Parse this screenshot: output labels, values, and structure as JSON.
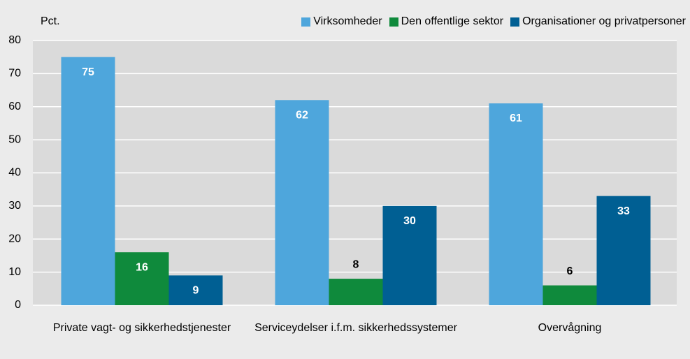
{
  "chart_data": {
    "type": "bar",
    "y_label": "Pct.",
    "categories": [
      "Private vagt- og sikkerhedstjenester",
      "Serviceydelser i.f.m. sikkerhedssystemer",
      "Overvågning"
    ],
    "series": [
      {
        "name": "Virksomheder",
        "color": "#4ea6dc",
        "values": [
          75,
          62,
          61
        ]
      },
      {
        "name": "Den offentlige sektor",
        "color": "#0f8a3c",
        "values": [
          16,
          8,
          6
        ]
      },
      {
        "name": "Organisationer og privatpersoner",
        "color": "#005f93",
        "values": [
          9,
          30,
          33
        ]
      }
    ],
    "ylim": [
      0,
      80
    ],
    "yticks": [
      0,
      10,
      20,
      30,
      40,
      50,
      60,
      70,
      80
    ],
    "grid": true,
    "legend": "top-right"
  }
}
